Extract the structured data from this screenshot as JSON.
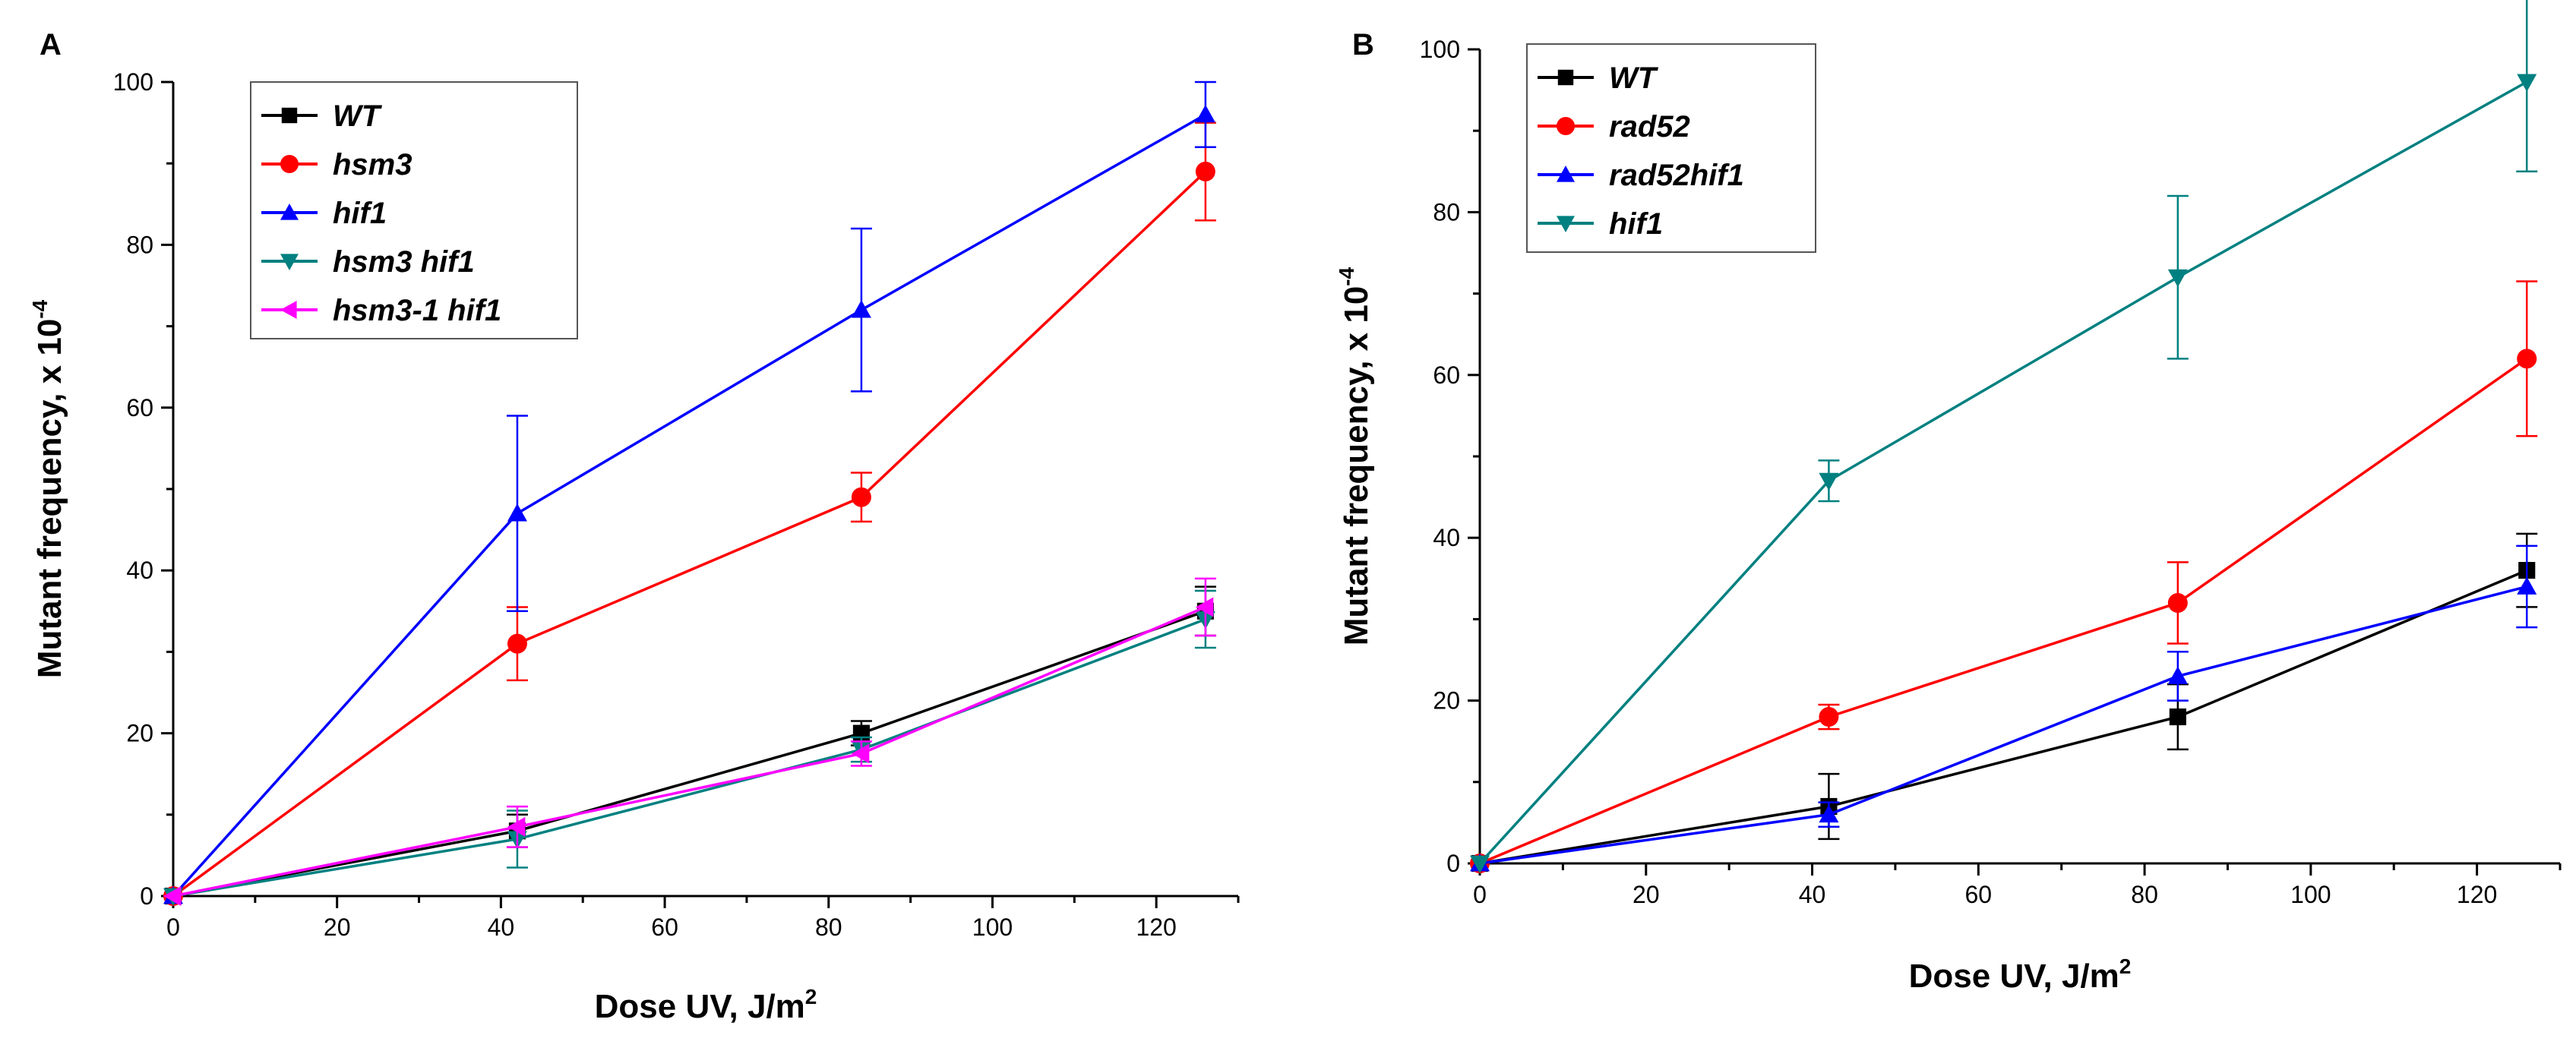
{
  "chart_data": [
    {
      "panel_label": "A",
      "type": "line",
      "xlabel": "Dose UV, J/m",
      "xlabel_sup": "2",
      "ylabel": "Mutant frequency, x 10",
      "ylabel_sup": "-4",
      "xlim": [
        0,
        130
      ],
      "ylim": [
        0,
        100
      ],
      "xticks": [
        0,
        20,
        40,
        60,
        80,
        100,
        120
      ],
      "yticks": [
        0,
        20,
        40,
        60,
        80,
        100
      ],
      "x": [
        0,
        42,
        84,
        126
      ],
      "legend_position": "top-left",
      "series": [
        {
          "name": "WT",
          "color": "#000000",
          "marker": "square",
          "values": [
            0,
            8,
            20,
            35
          ],
          "errors": [
            0,
            2,
            1.5,
            3
          ]
        },
        {
          "name": "hsm3",
          "color": "#ff0000",
          "marker": "circle",
          "values": [
            0,
            31,
            49,
            89
          ],
          "errors": [
            0,
            4.5,
            3,
            6
          ]
        },
        {
          "name": "hif1",
          "color": "#0000ff",
          "marker": "triangle-up",
          "values": [
            0,
            47,
            72,
            96
          ],
          "errors": [
            0,
            12,
            10,
            4
          ]
        },
        {
          "name": "hsm3 hif1",
          "color": "#008080",
          "marker": "triangle-down",
          "values": [
            0,
            7,
            18,
            34
          ],
          "errors": [
            0,
            3.5,
            1.5,
            3.5
          ]
        },
        {
          "name": "hsm3-1 hif1",
          "color": "#ff00ff",
          "marker": "triangle-left",
          "values": [
            0,
            8.5,
            17.5,
            35.5
          ],
          "errors": [
            0,
            2.5,
            1.5,
            3.5
          ]
        }
      ]
    },
    {
      "panel_label": "B",
      "type": "line",
      "xlabel": "Dose UV, J/m",
      "xlabel_sup": "2",
      "ylabel": "Mutant frequency, x 10",
      "ylabel_sup": "-4",
      "xlim": [
        0,
        130
      ],
      "ylim": [
        0,
        100
      ],
      "xticks": [
        0,
        20,
        40,
        60,
        80,
        100,
        120
      ],
      "yticks": [
        0,
        20,
        40,
        60,
        80,
        100
      ],
      "x": [
        0,
        42,
        84,
        126
      ],
      "legend_position": "top-left",
      "series": [
        {
          "name": "WT",
          "color": "#000000",
          "marker": "square",
          "values": [
            0,
            7,
            18,
            36
          ],
          "errors": [
            0,
            4,
            4,
            4.5
          ]
        },
        {
          "name": "rad52",
          "color": "#ff0000",
          "marker": "circle",
          "values": [
            0,
            18,
            32,
            62
          ],
          "errors": [
            0,
            1.5,
            5,
            9.5
          ]
        },
        {
          "name": "rad52hif1",
          "color": "#0000ff",
          "marker": "triangle-up",
          "values": [
            0,
            6,
            23,
            34
          ],
          "errors": [
            0,
            1.5,
            3,
            5
          ]
        },
        {
          "name": "hif1",
          "color": "#008080",
          "marker": "triangle-down",
          "values": [
            0,
            47,
            72,
            96
          ],
          "errors": [
            0,
            2.5,
            10,
            11
          ]
        }
      ]
    }
  ]
}
